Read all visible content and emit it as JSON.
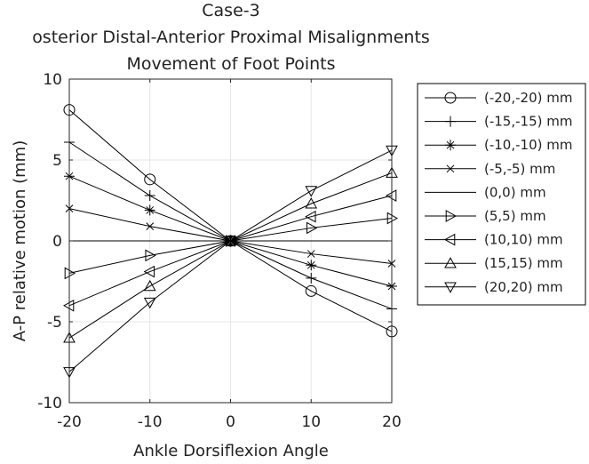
{
  "chart_data": {
    "type": "line",
    "title": [
      "Case-3",
      "osterior Distal-Anterior Proximal Misalignments",
      "Movement of Foot Points"
    ],
    "xlabel": "Ankle Dorsiflexion Angle",
    "ylabel": "A-P relative motion (mm)",
    "xlim": [
      -20,
      20
    ],
    "ylim": [
      -10,
      10
    ],
    "xticks": [
      -20,
      -10,
      0,
      10,
      20
    ],
    "yticks": [
      -10,
      -5,
      0,
      5,
      10
    ],
    "grid": true,
    "legend_position": "outside-right",
    "x": [
      -20,
      -10,
      0,
      10,
      20
    ],
    "series": [
      {
        "name": "(-20,-20) mm",
        "marker": "circle",
        "values": [
          8.1,
          3.8,
          0,
          -3.1,
          -5.6
        ]
      },
      {
        "name": "(-15,-15) mm",
        "marker": "plus",
        "values": [
          6.1,
          2.8,
          0,
          -2.3,
          -4.2
        ]
      },
      {
        "name": "(-10,-10) mm",
        "marker": "asterisk",
        "values": [
          4.0,
          1.9,
          0,
          -1.5,
          -2.8
        ]
      },
      {
        "name": "(-5,-5) mm",
        "marker": "x",
        "values": [
          2.0,
          0.9,
          0,
          -0.8,
          -1.4
        ]
      },
      {
        "name": "(0,0) mm",
        "marker": "none",
        "values": [
          0,
          0,
          0,
          0,
          0
        ]
      },
      {
        "name": "(5,5) mm",
        "marker": "triangle-right",
        "values": [
          -2.0,
          -0.9,
          0,
          0.8,
          1.4
        ]
      },
      {
        "name": "(10,10) mm",
        "marker": "triangle-left",
        "values": [
          -4.0,
          -1.9,
          0,
          1.5,
          2.8
        ]
      },
      {
        "name": "(15,15) mm",
        "marker": "triangle-up",
        "values": [
          -6.0,
          -2.8,
          0,
          2.3,
          4.2
        ]
      },
      {
        "name": "(20,20) mm",
        "marker": "triangle-down",
        "values": [
          -8.1,
          -3.8,
          0,
          3.1,
          5.6
        ]
      }
    ],
    "colors": {
      "line": "#000000",
      "grid": "#e6e6e6",
      "legend_border": "#000000"
    }
  }
}
